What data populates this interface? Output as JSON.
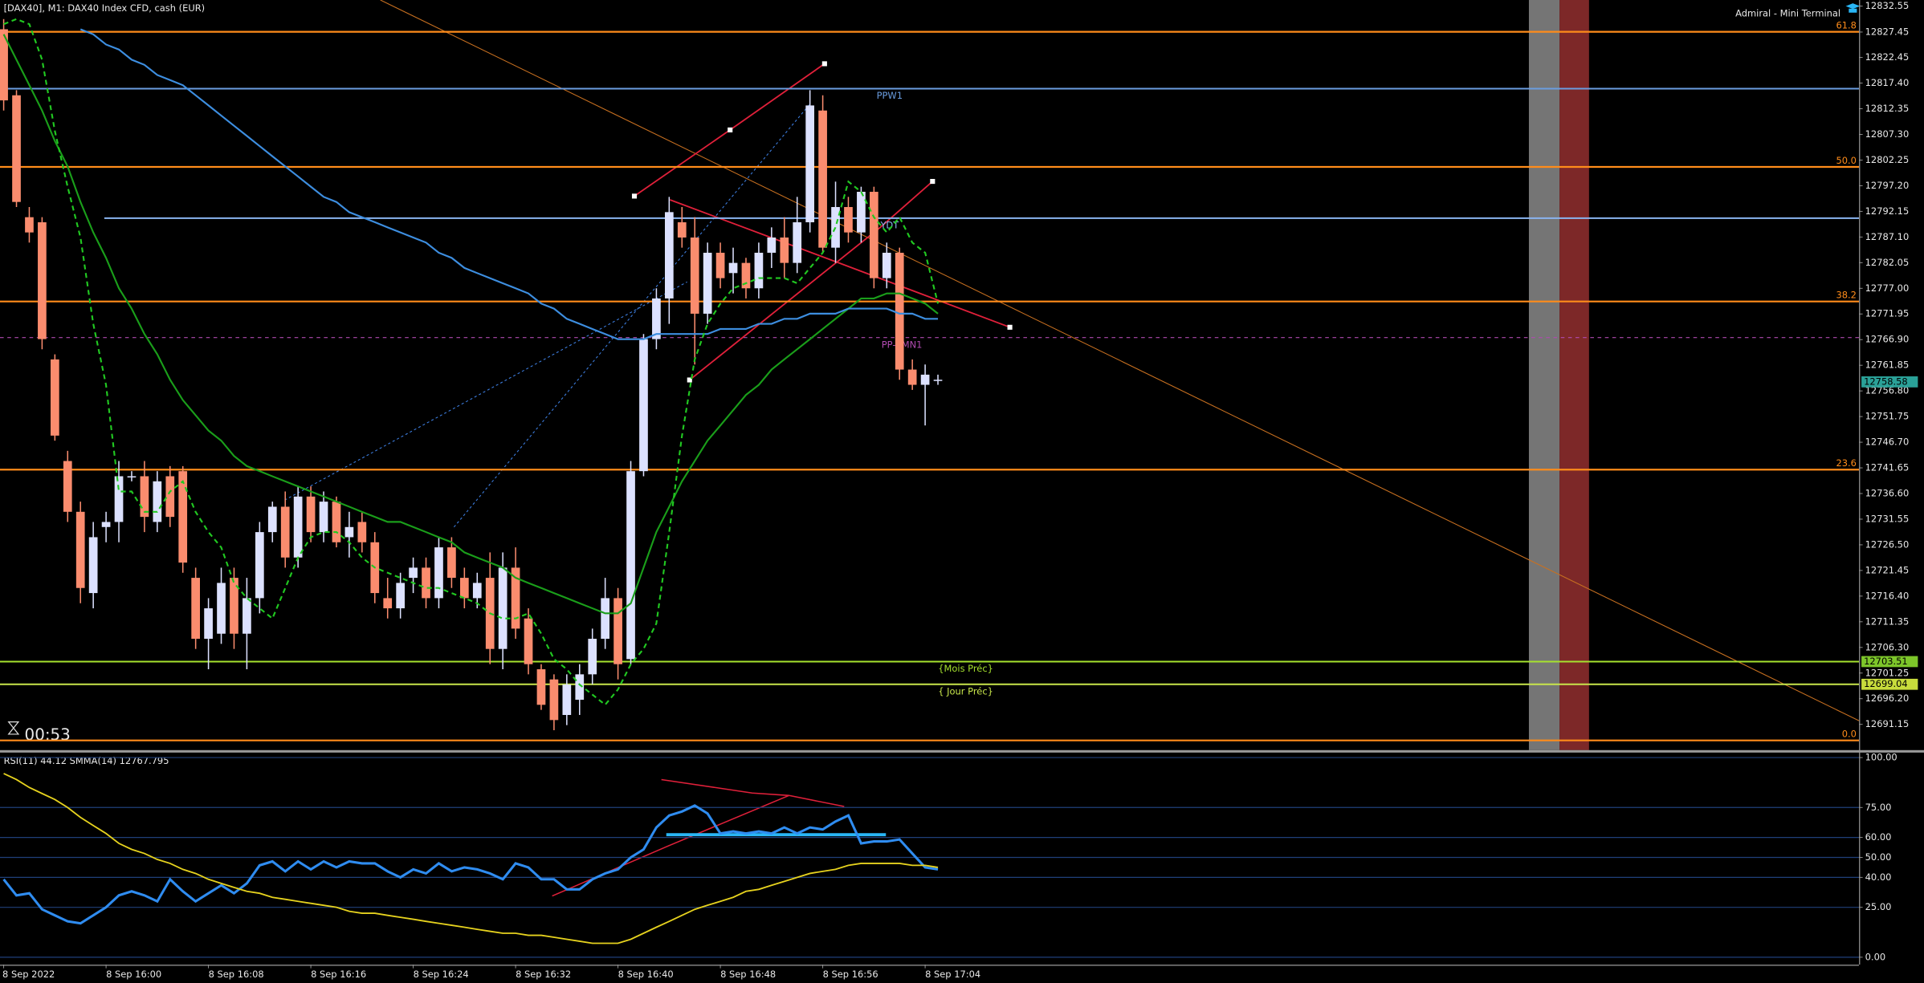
{
  "chart_data": [
    {
      "type": "candlestick",
      "title": "[DAX40], M1:  DAX40 Index CFD, cash (EUR)",
      "terminal_label": "Admiral - Mini Terminal",
      "timer": "00:53",
      "categories": [
        "8 Sep 2022",
        null,
        null,
        null,
        null,
        null,
        null,
        null,
        "8 Sep 16:00",
        null,
        null,
        null,
        null,
        null,
        null,
        null,
        "8 Sep 16:08",
        null,
        null,
        null,
        null,
        null,
        null,
        null,
        "8 Sep 16:16",
        null,
        null,
        null,
        null,
        null,
        null,
        null,
        "8 Sep 16:24",
        null,
        null,
        null,
        null,
        null,
        null,
        null,
        "8 Sep 16:32",
        null,
        null,
        null,
        null,
        null,
        null,
        null,
        "8 Sep 16:40",
        null,
        null,
        null,
        null,
        null,
        null,
        null,
        "8 Sep 16:48",
        null,
        null,
        null,
        null,
        null,
        null,
        null,
        "8 Sep 16:56",
        null,
        null,
        null,
        null,
        null,
        null,
        null,
        "8 Sep 17:04",
        null
      ],
      "open": [
        12828,
        12815,
        12791,
        12790,
        12763,
        12743,
        12733,
        12717,
        12730,
        12731,
        12740,
        12740,
        12731,
        12740,
        12741,
        12720,
        12708,
        12709,
        12720,
        12709,
        12716,
        12729,
        12734,
        12724,
        12736,
        12729,
        12735,
        12728,
        12731,
        12727,
        12716,
        12714,
        12720,
        12722,
        12716,
        12726,
        12720,
        12716,
        12720,
        12706,
        12722,
        12712,
        12702,
        12700,
        12693,
        12696,
        12701,
        12708,
        12716,
        12704,
        12741,
        12767,
        12775,
        12790,
        12787,
        12772,
        12784,
        12780,
        12782,
        12777,
        12784,
        12787,
        12782,
        12790,
        12812,
        12785,
        12793,
        12788,
        12796,
        12779,
        12784,
        12761,
        12758,
        12759
      ],
      "high": [
        12830,
        12816,
        12793,
        12791,
        12764,
        12745,
        12735,
        12731,
        12733,
        12743,
        12741,
        12743,
        12741,
        12742,
        12742,
        12722,
        12716,
        12722,
        12722,
        12720,
        12731,
        12735,
        12737,
        12738,
        12738,
        12737,
        12736,
        12733,
        12733,
        12729,
        12720,
        12721,
        12724,
        12724,
        12728,
        12728,
        12722,
        12721,
        12725,
        12725,
        12726,
        12714,
        12703,
        12701,
        12701,
        12703,
        12710,
        12720,
        12718,
        12743,
        12768,
        12777,
        12795,
        12793,
        12791,
        12786,
        12786,
        12785,
        12783,
        12786,
        12789,
        12791,
        12795,
        12816,
        12815,
        12798,
        12795,
        12797,
        12797,
        12786,
        12785,
        12763,
        12762,
        12760
      ],
      "low": [
        12812,
        12793,
        12786,
        12765,
        12747,
        12731,
        12715,
        12714,
        12727,
        12727,
        12739,
        12729,
        12729,
        12730,
        12721,
        12706,
        12702,
        12707,
        12706,
        12702,
        12713,
        12727,
        12722,
        12722,
        12727,
        12727,
        12726,
        12724,
        12725,
        12715,
        12712,
        12712,
        12717,
        12714,
        12714,
        12718,
        12714,
        12714,
        12703,
        12702,
        12708,
        12701,
        12694,
        12690,
        12691,
        12693,
        12699,
        12706,
        12700,
        12703,
        12740,
        12765,
        12770,
        12785,
        12762,
        12770,
        12777,
        12776,
        12775,
        12775,
        12781,
        12779,
        12780,
        12788,
        12784,
        12782,
        12786,
        12786,
        12777,
        12777,
        12759,
        12757,
        12750,
        12758
      ],
      "close": [
        12814,
        12794,
        12788,
        12767,
        12748,
        12733,
        12718,
        12728,
        12731,
        12740,
        12740,
        12732,
        12739,
        12732,
        12723,
        12708,
        12714,
        12719,
        12709,
        12716,
        12729,
        12734,
        12724,
        12736,
        12729,
        12735,
        12727,
        12730,
        12727,
        12717,
        12714,
        12719,
        12722,
        12716,
        12726,
        12720,
        12716,
        12719,
        12706,
        12722,
        12710,
        12703,
        12695,
        12692,
        12699,
        12701,
        12708,
        12716,
        12703,
        12741,
        12767,
        12775,
        12792,
        12787,
        12772,
        12784,
        12779,
        12782,
        12777,
        12784,
        12787,
        12782,
        12790,
        12813,
        12785,
        12793,
        12788,
        12796,
        12779,
        12784,
        12761,
        12758,
        12760,
        12759
      ],
      "bull_color": "#dce1ff",
      "bear_color": "#fa8c6e",
      "series": [
        {
          "color": "#1a9e1a",
          "dash": false,
          "values": [
            12827,
            12822,
            12817,
            12812,
            12806,
            12801,
            12794,
            12788,
            12783,
            12777,
            12773,
            12768,
            12764,
            12759,
            12755,
            12752,
            12749,
            12747,
            12744,
            12742,
            12741,
            12740,
            12739,
            12738,
            12737,
            12736,
            12735,
            12734,
            12733,
            12732,
            12731,
            12731,
            12730,
            12729,
            12728,
            12727,
            12725,
            12724,
            12723,
            12722,
            12720,
            12719,
            12718,
            12717,
            12716,
            12715,
            12714,
            12713,
            12713,
            12715,
            12722,
            12729,
            12734,
            12739,
            12743,
            12747,
            12750,
            12753,
            12756,
            12758,
            12761,
            12763,
            12765,
            12767,
            12769,
            12771,
            12773,
            12775,
            12775,
            12776,
            12776,
            12775,
            12774,
            12772
          ]
        },
        {
          "color": "#3d8ee0",
          "dash": false,
          "values": [
            null,
            null,
            null,
            null,
            null,
            null,
            12828,
            12827,
            12825,
            12824,
            12822,
            12821,
            12819,
            12818,
            12817,
            12815,
            12813,
            12811,
            12809,
            12807,
            12805,
            12803,
            12801,
            12799,
            12797,
            12795,
            12794,
            12792,
            12791,
            12790,
            12789,
            12788,
            12787,
            12786,
            12784,
            12783,
            12781,
            12780,
            12779,
            12778,
            12777,
            12776,
            12774,
            12773,
            12771,
            12770,
            12769,
            12768,
            12767,
            12767,
            12767,
            12768,
            12768,
            12768,
            12768,
            12768,
            12769,
            12769,
            12769,
            12770,
            12770,
            12771,
            12771,
            12772,
            12772,
            12772,
            12773,
            12773,
            12773,
            12773,
            12772,
            12772,
            12771,
            12771
          ]
        },
        {
          "color": "#21c821",
          "dash": true,
          "values": [
            12829,
            12830,
            12829,
            12822,
            12808,
            12797,
            12787,
            12770,
            12758,
            12737,
            12737,
            12733,
            12733,
            12737,
            12739,
            12733,
            12729,
            12726,
            12719,
            12716,
            12714,
            12712,
            12718,
            12724,
            12728,
            12729,
            12729,
            12727,
            12724,
            12722,
            12721,
            12720,
            12719,
            12718,
            12718,
            12717,
            12716,
            12715,
            12713,
            12712,
            12712,
            12713,
            12709,
            12704,
            12702,
            12699,
            12697,
            12695,
            12698,
            12703,
            12706,
            12711,
            12729,
            12748,
            12763,
            12770,
            12774,
            12777,
            12778,
            12779,
            12779,
            12779,
            12778,
            12781,
            12784,
            12789,
            12798,
            12796,
            12791,
            12788,
            12791,
            12786,
            12784,
            12774
          ]
        }
      ],
      "fib_color": "#ff8c1a",
      "fib_levels": [
        {
          "value": 12827.5,
          "label": "61.8"
        },
        {
          "value": 12800.9,
          "label": "50.0"
        },
        {
          "value": 12774.4,
          "label": "38.2"
        },
        {
          "value": 12741.3,
          "label": "23.6"
        },
        {
          "value": 12688,
          "label": "0.0"
        }
      ],
      "pivot_levels": [
        {
          "value": 12816.3,
          "label": "PPW1",
          "color": "#6a9de0",
          "dash": false
        },
        {
          "value": 12790.8,
          "label": "YDT",
          "color": "#8ab4f0",
          "dash": false
        },
        {
          "value": 12767.3,
          "label": "PP-SMN1",
          "color": "#b04ab0",
          "dash": true
        },
        {
          "value": 12703.51,
          "label": "{Mois Préc}",
          "color": "#a6e22e",
          "dash": false
        },
        {
          "value": 12699.04,
          "label": "{ Jour Préc}",
          "color": "#c8e64b",
          "dash": false
        }
      ],
      "price_tags": [
        12703.51,
        12699.04,
        12758.58
      ],
      "price_tag_colors": [
        "#7dc62a",
        "#c8dc3c",
        "#2aa198"
      ],
      "ylim": [
        12686.08,
        12833.76
      ],
      "yticks": [
        12832.55,
        12827.45,
        12822.45,
        {
          "value": 12817.4,
          "label": "12817.40"
        },
        12812.35,
        {
          "value": 12807.3,
          "label": "12807.30"
        },
        12802.25,
        {
          "value": 12797.2,
          "label": "12797.20"
        },
        12792.15,
        {
          "value": 12787.1,
          "label": "12787.10"
        },
        12782.05,
        {
          "value": 12777,
          "label": "12777.00"
        },
        12771.95,
        {
          "value": 12766.9,
          "label": "12766.90"
        },
        12761.85,
        {
          "value": 12756.8,
          "label": "12756.80"
        },
        12751.75,
        {
          "value": 12746.7,
          "label": "12746.70"
        },
        12741.65,
        {
          "value": 12736.6,
          "label": "12736.60"
        },
        12731.55,
        {
          "value": 12726.5,
          "label": "12726.50"
        },
        12721.45,
        {
          "value": 12716.4,
          "label": "12716.40"
        },
        12711.35,
        {
          "value": 12706.3,
          "label": "12706.30"
        },
        12701.25,
        {
          "value": 12696.2,
          "label": "12696.20"
        },
        12691.15
      ]
    },
    {
      "type": "line",
      "title": "RSI(11) 44.12 SMMA(14) 12767.795",
      "series": [
        {
          "color": "#2f8cf0",
          "values": [
            39,
            31,
            32,
            24,
            21,
            18,
            17,
            21,
            25,
            31,
            33,
            31,
            28,
            39,
            33,
            28,
            32,
            36,
            32,
            37,
            46,
            48,
            43,
            48,
            44,
            48,
            45,
            48,
            47,
            47,
            43,
            40,
            44,
            42,
            47,
            43,
            45,
            44,
            42,
            39,
            47,
            45,
            39,
            39,
            34,
            34,
            39,
            42,
            44,
            50,
            54,
            65,
            71,
            73,
            76,
            72,
            62,
            63,
            62,
            63,
            62,
            65,
            62,
            65,
            64,
            68,
            71,
            57,
            58,
            58,
            59,
            52,
            45,
            44
          ]
        },
        {
          "color": "#e6d21e",
          "values": [
            92,
            89,
            85,
            82,
            79,
            75,
            70,
            66,
            62,
            57,
            54,
            52,
            49,
            47,
            44,
            42,
            39,
            37,
            35,
            33,
            32,
            30,
            29,
            28,
            27,
            26,
            25,
            23,
            22,
            22,
            21,
            20,
            19,
            18,
            17,
            16,
            15,
            14,
            13,
            12,
            12,
            11,
            11,
            10,
            9,
            8,
            7,
            7,
            7,
            9,
            12,
            15,
            18,
            21,
            24,
            26,
            28,
            30,
            33,
            34,
            36,
            38,
            40,
            42,
            43,
            44,
            46,
            47,
            47,
            47,
            47,
            46,
            46,
            45
          ]
        }
      ],
      "ylim": [
        -3.7,
        102.5
      ],
      "yticks": [
        {
          "value": 100,
          "label": "100.00"
        },
        {
          "value": 75,
          "label": "75.00"
        },
        {
          "value": 60,
          "label": "60.00"
        },
        {
          "value": 50,
          "label": "50.00"
        },
        {
          "value": 40,
          "label": "40.00"
        },
        {
          "value": 25,
          "label": "25.00"
        },
        {
          "value": 0,
          "label": "0.00"
        }
      ],
      "grid": true,
      "grid_color": "#1f3f7a"
    }
  ]
}
